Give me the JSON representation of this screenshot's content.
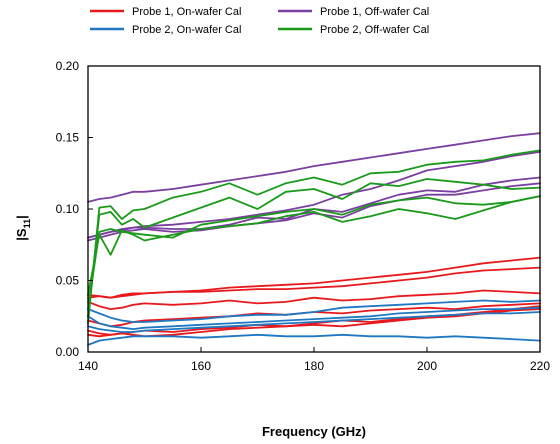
{
  "chart_data": {
    "type": "line",
    "xlabel": "Frequency (GHz)",
    "ylabel": {
      "main": "|S",
      "sub": "11",
      "end": "|"
    },
    "xlim": [
      140,
      220
    ],
    "ylim": [
      0,
      0.2
    ],
    "xticks": [
      "140",
      "160",
      "180",
      "200",
      "220"
    ],
    "yticks": [
      "0.00",
      "0.05",
      "0.10",
      "0.15",
      "0.20"
    ],
    "grid": false,
    "legend_position": "top",
    "legend": [
      {
        "label": "Probe 1, On-wafer Cal",
        "color": "#e8191c"
      },
      {
        "label": "Probe 1, Off-wafer Cal",
        "color": "#7b3fa0"
      },
      {
        "label": "Probe 2, On-wafer Cal",
        "color": "#1f78c1"
      },
      {
        "label": "Probe 2, Off-wafer Cal",
        "color": "#1a9a1a"
      }
    ],
    "x": [
      140,
      142,
      144,
      146,
      148,
      150,
      155,
      160,
      165,
      170,
      175,
      180,
      185,
      190,
      195,
      200,
      205,
      210,
      215,
      220
    ],
    "series": [
      {
        "group": "Probe 1, On-wafer Cal",
        "color": "#e8191c",
        "values": [
          0.04,
          0.039,
          0.038,
          0.039,
          0.04,
          0.041,
          0.042,
          0.043,
          0.045,
          0.046,
          0.047,
          0.048,
          0.05,
          0.052,
          0.054,
          0.056,
          0.059,
          0.062,
          0.064,
          0.066
        ]
      },
      {
        "group": "Probe 1, On-wafer Cal",
        "color": "#e8191c",
        "values": [
          0.038,
          0.039,
          0.038,
          0.04,
          0.041,
          0.041,
          0.042,
          0.042,
          0.043,
          0.044,
          0.044,
          0.045,
          0.046,
          0.048,
          0.05,
          0.052,
          0.055,
          0.057,
          0.058,
          0.059
        ]
      },
      {
        "group": "Probe 1, On-wafer Cal",
        "color": "#e8191c",
        "values": [
          0.035,
          0.032,
          0.03,
          0.031,
          0.033,
          0.034,
          0.033,
          0.034,
          0.036,
          0.034,
          0.035,
          0.038,
          0.036,
          0.037,
          0.039,
          0.04,
          0.041,
          0.043,
          0.042,
          0.041
        ]
      },
      {
        "group": "Probe 1, On-wafer Cal",
        "color": "#e8191c",
        "values": [
          0.022,
          0.02,
          0.018,
          0.019,
          0.021,
          0.022,
          0.023,
          0.024,
          0.025,
          0.027,
          0.026,
          0.028,
          0.027,
          0.029,
          0.03,
          0.031,
          0.03,
          0.032,
          0.033,
          0.034
        ]
      },
      {
        "group": "Probe 1, On-wafer Cal",
        "color": "#e8191c",
        "values": [
          0.015,
          0.013,
          0.012,
          0.013,
          0.014,
          0.015,
          0.014,
          0.016,
          0.017,
          0.019,
          0.018,
          0.02,
          0.022,
          0.021,
          0.023,
          0.025,
          0.026,
          0.028,
          0.03,
          0.032
        ]
      },
      {
        "group": "Probe 1, On-wafer Cal",
        "color": "#e8191c",
        "values": [
          0.012,
          0.011,
          0.012,
          0.013,
          0.012,
          0.011,
          0.012,
          0.014,
          0.016,
          0.017,
          0.018,
          0.019,
          0.018,
          0.02,
          0.022,
          0.024,
          0.025,
          0.027,
          0.029,
          0.03
        ]
      },
      {
        "group": "Probe 2, On-wafer Cal",
        "color": "#1f78c1",
        "values": [
          0.03,
          0.027,
          0.024,
          0.022,
          0.021,
          0.021,
          0.022,
          0.023,
          0.025,
          0.026,
          0.026,
          0.028,
          0.031,
          0.032,
          0.033,
          0.034,
          0.035,
          0.036,
          0.035,
          0.036
        ]
      },
      {
        "group": "Probe 2, On-wafer Cal",
        "color": "#1f78c1",
        "values": [
          0.025,
          0.02,
          0.018,
          0.017,
          0.016,
          0.017,
          0.018,
          0.019,
          0.02,
          0.021,
          0.022,
          0.023,
          0.024,
          0.025,
          0.027,
          0.028,
          0.029,
          0.03,
          0.03,
          0.031
        ]
      },
      {
        "group": "Probe 2, On-wafer Cal",
        "color": "#1f78c1",
        "values": [
          0.018,
          0.016,
          0.015,
          0.014,
          0.014,
          0.015,
          0.016,
          0.017,
          0.018,
          0.019,
          0.02,
          0.021,
          0.022,
          0.023,
          0.024,
          0.025,
          0.026,
          0.027,
          0.027,
          0.028
        ]
      },
      {
        "group": "Probe 2, On-wafer Cal",
        "color": "#1f78c1",
        "values": [
          0.005,
          0.008,
          0.009,
          0.01,
          0.011,
          0.011,
          0.011,
          0.01,
          0.011,
          0.012,
          0.011,
          0.011,
          0.012,
          0.011,
          0.011,
          0.01,
          0.011,
          0.01,
          0.009,
          0.008
        ]
      },
      {
        "group": "Probe 1, Off-wafer Cal",
        "color": "#7b3fa0",
        "values": [
          0.105,
          0.107,
          0.108,
          0.11,
          0.112,
          0.112,
          0.114,
          0.117,
          0.12,
          0.123,
          0.126,
          0.13,
          0.133,
          0.136,
          0.139,
          0.142,
          0.145,
          0.148,
          0.151,
          0.153
        ]
      },
      {
        "group": "Probe 1, Off-wafer Cal",
        "color": "#7b3fa0",
        "values": [
          0.08,
          0.082,
          0.084,
          0.086,
          0.087,
          0.088,
          0.089,
          0.091,
          0.093,
          0.096,
          0.099,
          0.103,
          0.11,
          0.114,
          0.12,
          0.127,
          0.13,
          0.133,
          0.137,
          0.14
        ]
      },
      {
        "group": "Probe 1, Off-wafer Cal",
        "color": "#7b3fa0",
        "values": [
          0.08,
          0.082,
          0.084,
          0.085,
          0.087,
          0.087,
          0.086,
          0.086,
          0.089,
          0.094,
          0.093,
          0.1,
          0.098,
          0.104,
          0.11,
          0.113,
          0.112,
          0.117,
          0.12,
          0.122
        ]
      },
      {
        "group": "Probe 1, Off-wafer Cal",
        "color": "#7b3fa0",
        "values": [
          0.078,
          0.08,
          0.082,
          0.084,
          0.085,
          0.086,
          0.084,
          0.085,
          0.088,
          0.09,
          0.092,
          0.097,
          0.094,
          0.102,
          0.106,
          0.11,
          0.11,
          0.113,
          0.116,
          0.118
        ]
      },
      {
        "group": "Probe 2, Off-wafer Cal",
        "color": "#1a9a1a",
        "values": [
          0.02,
          0.101,
          0.102,
          0.093,
          0.099,
          0.1,
          0.108,
          0.112,
          0.118,
          0.11,
          0.118,
          0.122,
          0.117,
          0.125,
          0.126,
          0.131,
          0.133,
          0.134,
          0.138,
          0.141
        ]
      },
      {
        "group": "Probe 2, Off-wafer Cal",
        "color": "#1a9a1a",
        "values": [
          0.025,
          0.096,
          0.098,
          0.089,
          0.093,
          0.087,
          0.094,
          0.101,
          0.108,
          0.1,
          0.112,
          0.114,
          0.107,
          0.118,
          0.116,
          0.121,
          0.119,
          0.117,
          0.114,
          0.115
        ]
      },
      {
        "group": "Probe 2, Off-wafer Cal",
        "color": "#1a9a1a",
        "values": [
          0.03,
          0.084,
          0.086,
          0.084,
          0.083,
          0.082,
          0.08,
          0.089,
          0.092,
          0.095,
          0.098,
          0.1,
          0.096,
          0.103,
          0.106,
          0.108,
          0.104,
          0.103,
          0.105,
          0.109
        ]
      },
      {
        "group": "Probe 2, Off-wafer Cal",
        "color": "#1a9a1a",
        "values": [
          0.04,
          0.082,
          0.068,
          0.085,
          0.082,
          0.078,
          0.082,
          0.086,
          0.088,
          0.09,
          0.095,
          0.098,
          0.091,
          0.095,
          0.1,
          0.097,
          0.093,
          0.099,
          0.105,
          0.109
        ]
      }
    ]
  }
}
